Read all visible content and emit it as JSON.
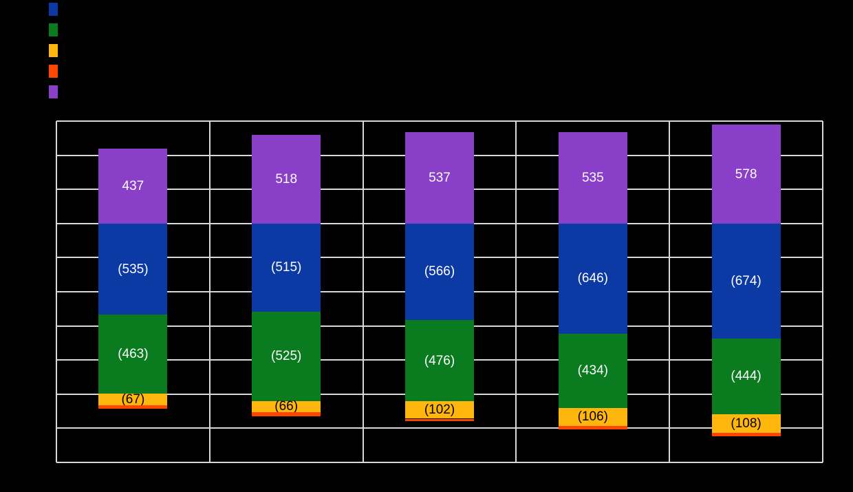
{
  "figure": {
    "background_color": "#000000",
    "gridline_color": "#D9D9D9"
  },
  "legend": {
    "position": "top-left",
    "items": [
      {
        "name": "series-blue",
        "color": "#0C3AA4",
        "label": ""
      },
      {
        "name": "series-green",
        "color": "#0A7B1E",
        "label": ""
      },
      {
        "name": "series-orange",
        "color": "#FFB60D",
        "label": ""
      },
      {
        "name": "series-red",
        "color": "#FF4500",
        "label": ""
      },
      {
        "name": "series-purple",
        "color": "#8A3FC9",
        "label": ""
      }
    ]
  },
  "chart_data": {
    "type": "bar",
    "stacked": true,
    "orientation": "vertical",
    "title": "",
    "xlabel": "",
    "ylabel": "",
    "categories": [
      "",
      "",
      "",
      "",
      ""
    ],
    "series": [
      {
        "name": "purple",
        "color": "#8A3FC9",
        "values": [
          437,
          518,
          537,
          535,
          578
        ],
        "labels": [
          "437",
          "518",
          "537",
          "535",
          "578"
        ],
        "label_color": "#FFFFFF"
      },
      {
        "name": "blue",
        "color": "#0C3AA4",
        "values": [
          -535,
          -515,
          -566,
          -646,
          -674
        ],
        "labels": [
          "(535)",
          "(515)",
          "(566)",
          "(646)",
          "(674)"
        ],
        "label_color": "#FFFFFF"
      },
      {
        "name": "green",
        "color": "#0A7B1E",
        "values": [
          -463,
          -525,
          -476,
          -434,
          -444
        ],
        "labels": [
          "(463)",
          "(525)",
          "(476)",
          "(434)",
          "(444)"
        ],
        "label_color": "#FFFFFF"
      },
      {
        "name": "orange",
        "color": "#FFB60D",
        "values": [
          -67,
          -66,
          -102,
          -106,
          -108
        ],
        "labels": [
          "(67)",
          "(66)",
          "(102)",
          "(106)",
          "(108)"
        ],
        "label_color": "#000000"
      },
      {
        "name": "red",
        "color": "#FF4500",
        "values": [
          -21,
          -24,
          -16,
          -21,
          -19
        ],
        "labels": [
          "",
          "",
          "",
          "",
          ""
        ],
        "label_color": "#000000"
      }
    ],
    "ylim": [
      -1400,
      600
    ],
    "ytick_interval": 200,
    "grid": true,
    "legend_position": "top-left",
    "value_label_format": "negatives shown in parentheses"
  }
}
